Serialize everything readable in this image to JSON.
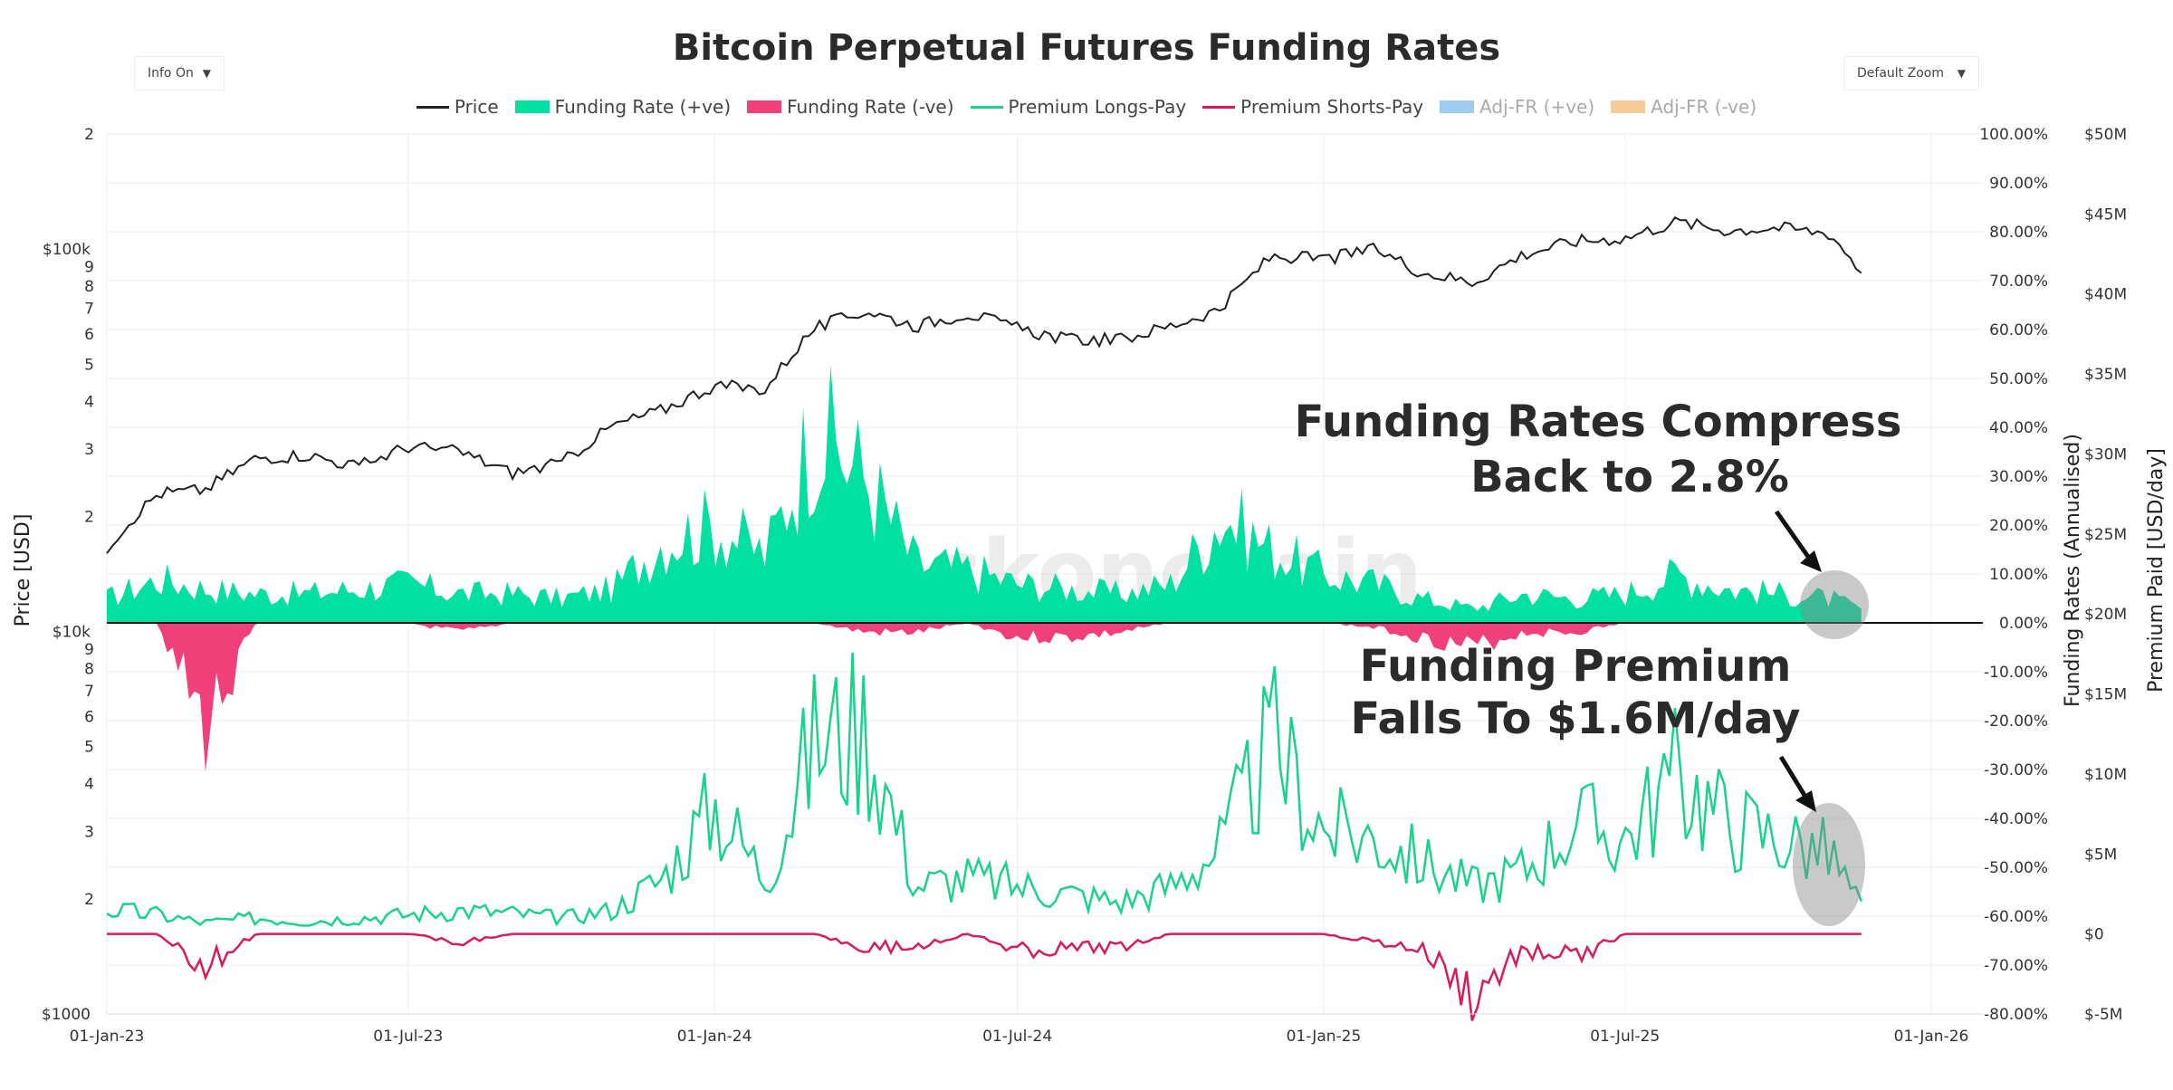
{
  "title": "Bitcoin Perpetual Futures Funding Rates",
  "controls": {
    "info_label": "Info On",
    "zoom_label": "Default Zoom"
  },
  "legend": [
    {
      "label": "Price",
      "color": "#222222",
      "kind": "line",
      "dim": false
    },
    {
      "label": "Funding Rate (+ve)",
      "color": "#00e0a0",
      "kind": "box",
      "dim": false
    },
    {
      "label": "Funding Rate (-ve)",
      "color": "#f0407a",
      "kind": "box",
      "dim": false
    },
    {
      "label": "Premium Longs-Pay",
      "color": "#19d28c",
      "kind": "line",
      "dim": false
    },
    {
      "label": "Premium Shorts-Pay",
      "color": "#d81b60",
      "kind": "line",
      "dim": false
    },
    {
      "label": "Adj-FR (+ve)",
      "color": "#9ecbf0",
      "kind": "box",
      "dim": true
    },
    {
      "label": "Adj-FR (-ve)",
      "color": "#f7cc99",
      "kind": "box",
      "dim": true
    }
  ],
  "watermark": "_checkonchain",
  "annotations": {
    "top_line1": "Funding Rates Compress",
    "top_line2": "Back to 2.8%",
    "bottom_line1": "Funding Premium",
    "bottom_line2": "Falls To $1.6M/day"
  },
  "axes": {
    "x_ticks": [
      "01-Jan-23",
      "01-Jul-23",
      "01-Jan-24",
      "01-Jul-24",
      "01-Jan-25",
      "01-Jul-25",
      "01-Jan-26"
    ],
    "x_range": [
      "2023-01-01",
      "2026-02-01"
    ],
    "price_label": "Price [USD]",
    "price_ticks": [
      "$1000",
      "2",
      "3",
      "4",
      "5",
      "6",
      "7",
      "8",
      "9",
      "$10k",
      "2",
      "3",
      "4",
      "5",
      "6",
      "7",
      "8",
      "9",
      "$100k",
      "2"
    ],
    "price_tick_values": [
      1000,
      2000,
      3000,
      4000,
      5000,
      6000,
      7000,
      8000,
      9000,
      10000,
      20000,
      30000,
      40000,
      50000,
      60000,
      70000,
      80000,
      90000,
      100000,
      200000
    ],
    "price_scale": "log",
    "price_range": [
      1000,
      200000
    ],
    "funding_label": "Funding Rates (Annualised)",
    "funding_ticks": [
      "100.00%",
      "90.00%",
      "80.00%",
      "70.00%",
      "60.00%",
      "50.00%",
      "40.00%",
      "30.00%",
      "20.00%",
      "10.00%",
      "0.00%",
      "-10.00%",
      "-20.00%",
      "-30.00%",
      "-40.00%",
      "-50.00%",
      "-60.00%",
      "-70.00%",
      "-80.00%"
    ],
    "funding_range": [
      -80,
      100
    ],
    "premium_label": "Premium Paid [USD/day]",
    "premium_ticks": [
      "$50M",
      "$45M",
      "$40M",
      "$35M",
      "$30M",
      "$25M",
      "$20M",
      "$15M",
      "$10M",
      "$5M",
      "$0",
      "$-5M"
    ],
    "premium_range": [
      -5,
      50
    ]
  },
  "colors": {
    "price": "#222222",
    "fr_pos": "#00e0a0",
    "fr_neg": "#f0407a",
    "prem_long": "#19d28c",
    "prem_short": "#d81b60",
    "grid": "#eeeeee"
  },
  "chart_data": {
    "type": "line",
    "title": "Bitcoin Perpetual Futures Funding Rates",
    "ylabel": "Price [USD]",
    "y2label": "Funding Rates (Annualised)",
    "y3label": "Premium Paid [USD/day]",
    "x_dates": [
      "2023-01-01",
      "2023-02-01",
      "2023-03-01",
      "2023-04-01",
      "2023-05-01",
      "2023-06-01",
      "2023-07-01",
      "2023-08-01",
      "2023-09-01",
      "2023-10-01",
      "2023-11-01",
      "2023-12-01",
      "2024-01-01",
      "2024-02-01",
      "2024-03-01",
      "2024-04-01",
      "2024-05-01",
      "2024-06-01",
      "2024-07-01",
      "2024-08-01",
      "2024-09-01",
      "2024-10-01",
      "2024-11-01",
      "2024-12-01",
      "2025-01-01",
      "2025-02-01",
      "2025-03-01",
      "2025-04-01",
      "2025-05-01",
      "2025-06-01",
      "2025-07-01",
      "2025-08-01",
      "2025-09-01",
      "2025-10-01",
      "2025-11-01",
      "2025-11-20"
    ],
    "series": [
      {
        "name": "Price",
        "axis": "price_usd",
        "values": [
          16600,
          23000,
          23500,
          28500,
          29000,
          27000,
          30500,
          29500,
          26000,
          27500,
          34500,
          38000,
          44000,
          43000,
          62000,
          69000,
          63000,
          68000,
          62000,
          58000,
          58000,
          63000,
          70000,
          96000,
          94000,
          100000,
          87000,
          82000,
          97000,
          105000,
          107000,
          118000,
          112000,
          114000,
          110000,
          87000
        ]
      },
      {
        "name": "Funding Rate (+ve)",
        "axis": "funding_pct",
        "values": [
          5,
          9,
          7,
          6,
          6,
          7,
          8,
          6,
          6,
          5,
          7,
          17,
          20,
          14,
          40,
          30,
          12,
          11,
          8,
          7,
          6,
          8,
          22,
          15,
          10,
          8,
          5,
          3,
          6,
          5,
          6,
          10,
          7,
          6,
          5,
          2.8
        ]
      },
      {
        "name": "Funding Rate (-ve)",
        "axis": "funding_pct",
        "values": [
          0,
          0,
          -22,
          0,
          0,
          0,
          0,
          -2,
          0,
          0,
          0,
          0,
          0,
          0,
          0,
          -2,
          -2,
          0,
          -3,
          -3,
          -2,
          0,
          0,
          0,
          0,
          -1,
          -3,
          -5,
          -2,
          -2,
          0,
          0,
          0,
          0,
          0,
          0
        ]
      },
      {
        "name": "Premium Longs-Pay",
        "axis": "premium_usd_m",
        "values": [
          1.5,
          1.2,
          0.7,
          1.0,
          0.8,
          1.0,
          1.2,
          1.5,
          1.3,
          1.0,
          1.5,
          3.5,
          8.0,
          3.5,
          12.0,
          13.0,
          3.0,
          3.5,
          3.0,
          2.5,
          2.0,
          3.0,
          5.5,
          12.0,
          6.5,
          6.0,
          4.5,
          3.0,
          4.0,
          7.0,
          6.0,
          10.0,
          7.0,
          6.0,
          5.0,
          1.6
        ]
      },
      {
        "name": "Premium Shorts-Pay",
        "axis": "premium_usd_m",
        "values": [
          0,
          0,
          -2.0,
          0,
          0,
          0,
          0,
          -0.5,
          0,
          0,
          0,
          0,
          0,
          0,
          0,
          -0.8,
          -0.8,
          0,
          -1.0,
          -1.0,
          -0.8,
          0,
          0,
          0,
          0,
          -0.5,
          -1.0,
          -4.0,
          -1.0,
          -1.5,
          0,
          0,
          0,
          0,
          0,
          0
        ]
      }
    ]
  }
}
